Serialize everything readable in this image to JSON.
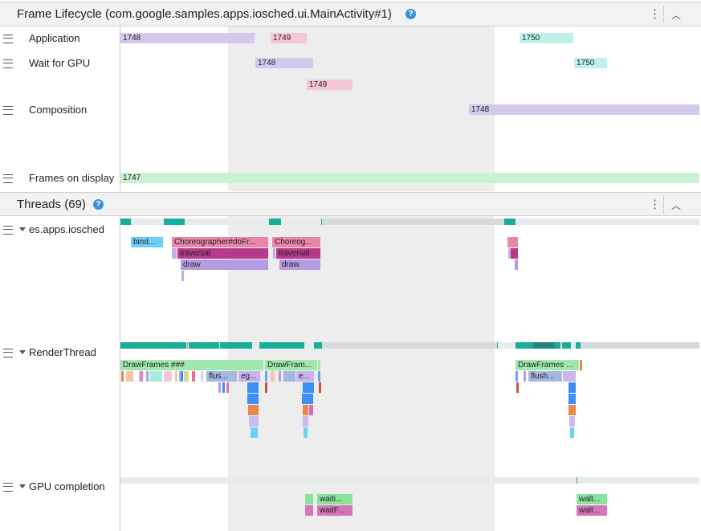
{
  "frame_lifecycle": {
    "title": "Frame Lifecycle (com.google.samples.apps.iosched.ui.MainActivity#1)",
    "help_icon": "question-circle-icon",
    "rows": [
      {
        "label": "Application"
      },
      {
        "label": "Wait for GPU"
      },
      {
        "label": "Composition"
      },
      {
        "label": "Frames on display"
      }
    ],
    "frames": {
      "f1747": "1747",
      "f1748": "1748",
      "f1749": "1749",
      "f1750": "1750"
    }
  },
  "threads": {
    "title": "Threads (69)",
    "rows": [
      {
        "label": "es.apps.iosched"
      },
      {
        "label": "RenderThread"
      },
      {
        "label": "GPU completion"
      }
    ],
    "slices": {
      "bind": "bind...",
      "choreo1": "Choreographer#doFr...",
      "choreo2": "Choreog...",
      "traversal": "traversal",
      "draw": "draw",
      "drawframes1": "DrawFrames ###",
      "drawframes2": "DrawFram...",
      "drawframes3": "DrawFrames ...",
      "flus": "flus...",
      "eg": "eg...",
      "e": "e...",
      "flush": "flush...",
      "waiti": "waiti...",
      "waitf": "waitF...",
      "walt": "walt..."
    }
  },
  "colors": {
    "frame_purple": "#d4c8ec",
    "frame_pink": "#f6c6d8",
    "frame_cyan": "#bdf2ec",
    "frame_green": "#c8f2d2",
    "state_running": "#1aae9a",
    "selection": "#ededed"
  }
}
